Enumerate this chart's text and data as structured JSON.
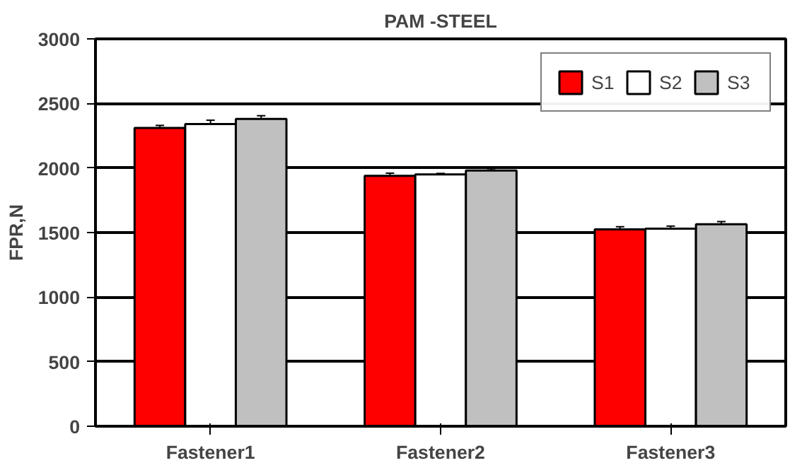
{
  "chart_data": {
    "type": "bar",
    "title": "PAM -STEEL",
    "ylabel": "FPR,N",
    "categories": [
      "Fastener1",
      "Fastener2",
      "Fastener3"
    ],
    "series": [
      {
        "name": "S1",
        "color": "#ff0000",
        "values": [
          2310,
          1940,
          1525
        ],
        "errors": [
          20,
          20,
          20
        ]
      },
      {
        "name": "S2",
        "color": "#ffffff",
        "values": [
          2340,
          1950,
          1530
        ],
        "errors": [
          30,
          8,
          20
        ]
      },
      {
        "name": "S3",
        "color": "#c0c0c0",
        "values": [
          2380,
          1980,
          1565
        ],
        "errors": [
          25,
          15,
          20
        ]
      }
    ],
    "ylim": [
      0,
      3000
    ],
    "yticks": [
      0,
      500,
      1000,
      1500,
      2000,
      2500,
      3000
    ],
    "grid": "y",
    "legend": "top right"
  }
}
